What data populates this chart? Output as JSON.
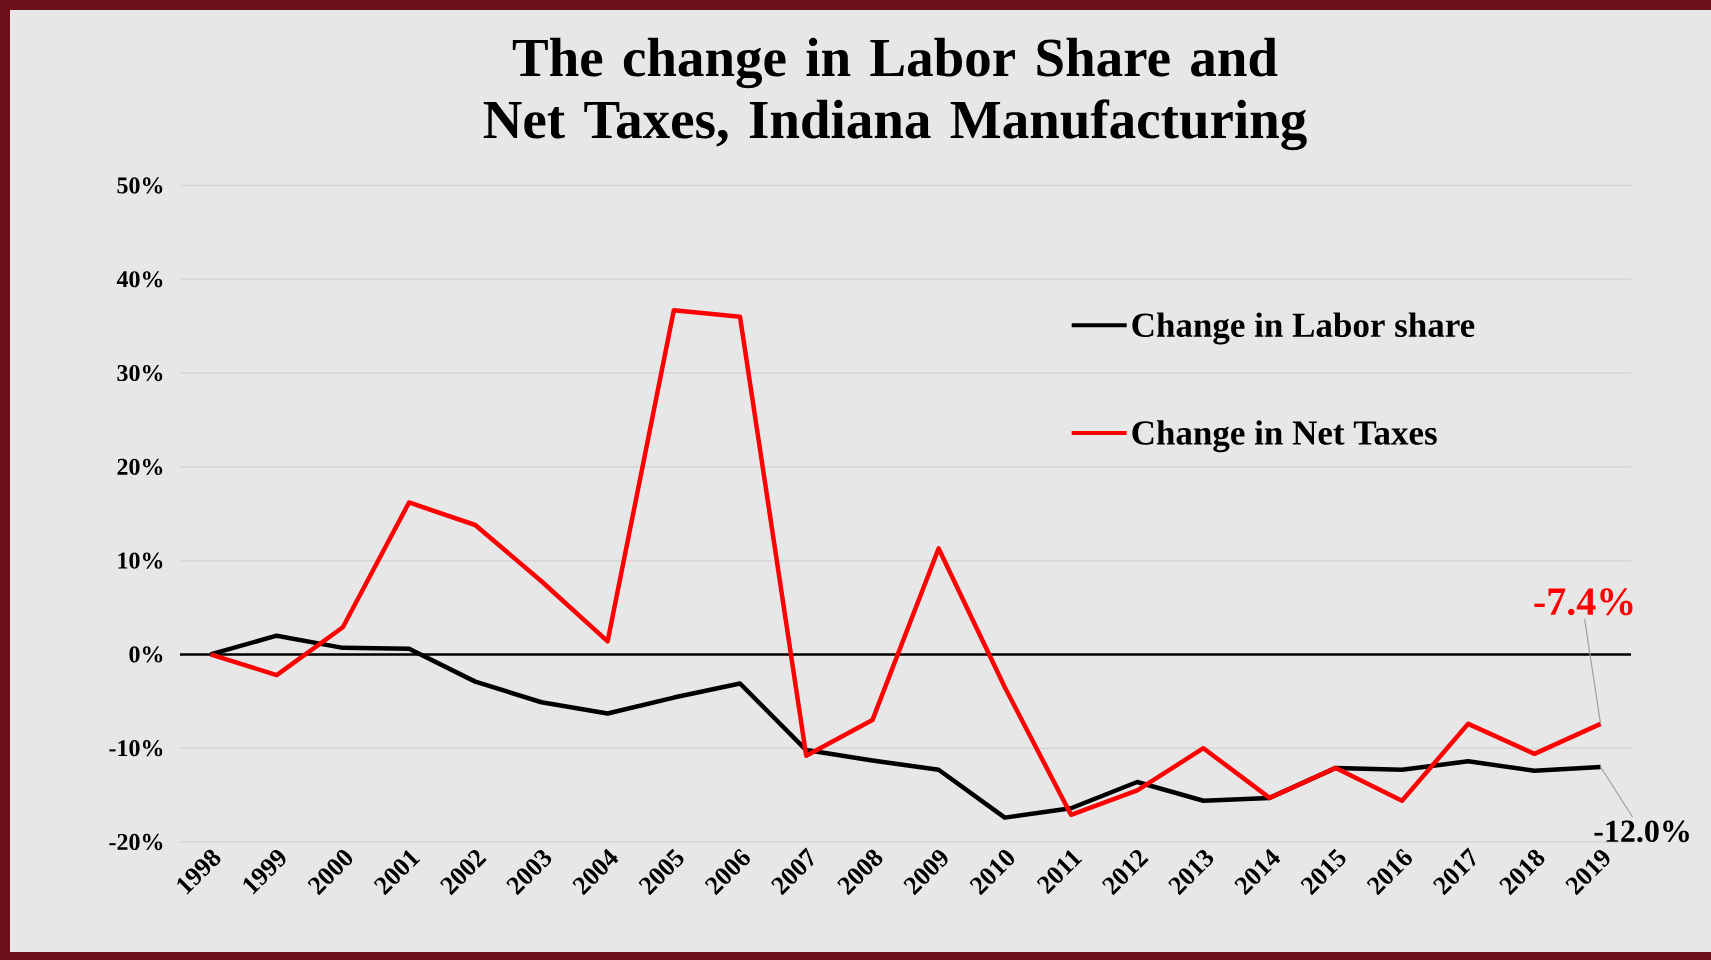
{
  "chart_data": {
    "type": "line",
    "title": "The change in Labor Share and Net Taxes, Indiana Manufacturing",
    "categories": [
      "1998",
      "1999",
      "2000",
      "2001",
      "2002",
      "2003",
      "2004",
      "2005",
      "2006",
      "2007",
      "2008",
      "2009",
      "2010",
      "2011",
      "2012",
      "2013",
      "2014",
      "2015",
      "2016",
      "2017",
      "2018",
      "2019"
    ],
    "series": [
      {
        "name": "Change in Labor share",
        "color": "#000000",
        "values": [
          0,
          2.0,
          0.7,
          0.6,
          -2.9,
          -5.1,
          -6.3,
          -4.6,
          -3.1,
          -10.2,
          -11.3,
          -12.3,
          -17.4,
          -16.4,
          -13.6,
          -15.6,
          -15.3,
          -12.1,
          -12.3,
          -11.4,
          -12.4,
          -12.0
        ]
      },
      {
        "name": "Change in Net Taxes",
        "color": "#ff0000",
        "values": [
          0,
          -2.2,
          2.9,
          16.2,
          13.8,
          7.8,
          1.4,
          36.7,
          36.0,
          -10.8,
          -7.0,
          11.3,
          -3.5,
          -17.1,
          -14.5,
          -10.0,
          -15.3,
          -12.1,
          -15.6,
          -7.4,
          -10.6,
          -7.4
        ]
      }
    ],
    "ylim": [
      -20,
      50
    ],
    "yticks": [
      {
        "value": -20,
        "label": "-20%"
      },
      {
        "value": -10,
        "label": "-10%"
      },
      {
        "value": 0,
        "label": "0%"
      },
      {
        "value": 10,
        "label": "10%"
      },
      {
        "value": 20,
        "label": "20%"
      },
      {
        "value": 30,
        "label": "30%"
      },
      {
        "value": 40,
        "label": "40%"
      },
      {
        "value": 50,
        "label": "50%"
      }
    ],
    "grid": "y",
    "legend": "top right",
    "marker": "none",
    "line_style": "solid",
    "annotations": [
      {
        "text": "-7.4%",
        "x": "2019",
        "y": -7.4
      },
      {
        "text": "-12.0%",
        "x": "2019",
        "y": -12.0
      }
    ]
  }
}
